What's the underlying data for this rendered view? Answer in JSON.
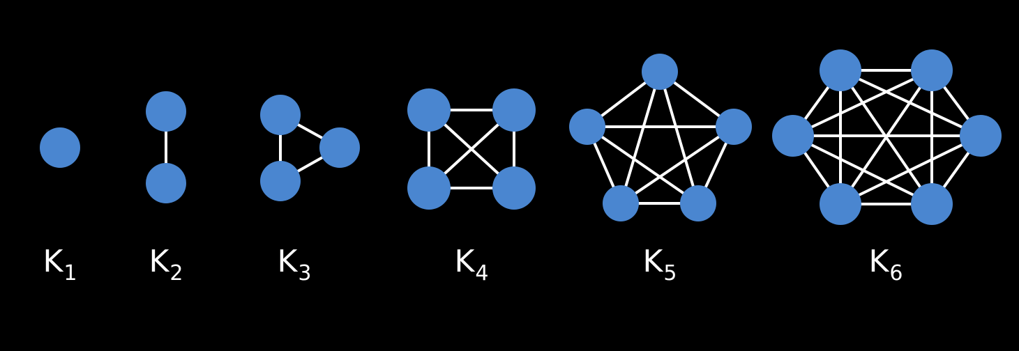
{
  "colors": {
    "background": "#000000",
    "node": "#4a86d0",
    "edge": "#ffffff",
    "label": "#ffffff"
  },
  "graphs": [
    {
      "letter": "K",
      "index": "1",
      "vertex_count": 1
    },
    {
      "letter": "K",
      "index": "2",
      "vertex_count": 2
    },
    {
      "letter": "K",
      "index": "3",
      "vertex_count": 3
    },
    {
      "letter": "K",
      "index": "4",
      "vertex_count": 4
    },
    {
      "letter": "K",
      "index": "5",
      "vertex_count": 5
    },
    {
      "letter": "K",
      "index": "6",
      "vertex_count": 6
    }
  ]
}
